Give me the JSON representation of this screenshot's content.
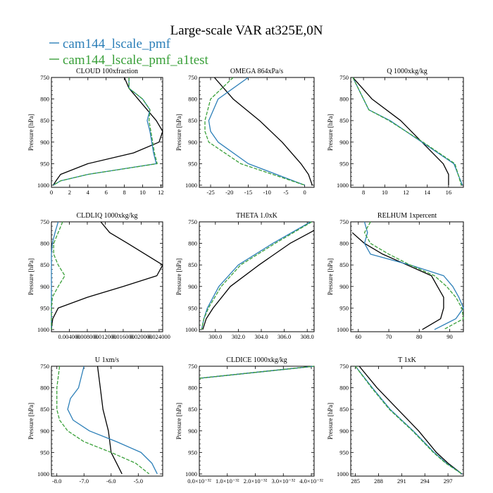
{
  "title": "Large-scale VAR at325E,0N",
  "legend": [
    {
      "label": "cam144_lscale_pmf",
      "color": "#2c7fb8"
    },
    {
      "label": "cam144_lscale_pmf_a1test",
      "color": "#3aa03a"
    }
  ],
  "colors": {
    "control": "#000000"
  },
  "chart_data": [
    {
      "type": "line",
      "title": "CLOUD 100xfraction",
      "ylabel": "Pressure [hPa]",
      "xlim": [
        0,
        12.2
      ],
      "ylim": [
        750,
        1005
      ],
      "xticks": [
        0,
        2,
        4,
        6,
        8,
        10,
        12
      ],
      "xtick_labels": [
        "0",
        "2",
        "4",
        "6",
        "8",
        "10",
        "12"
      ],
      "yticks": [
        750,
        800,
        850,
        900,
        950,
        1000
      ],
      "ytick_labels": [
        "750",
        "800",
        "850",
        "900",
        "950",
        "1000"
      ],
      "series": [
        {
          "color": "#000000",
          "y": [
            750,
            775,
            800,
            825,
            850,
            875,
            900,
            925,
            950,
            975,
            990,
            1000
          ],
          "x": [
            8.0,
            8.5,
            9.5,
            10.5,
            11.5,
            12.2,
            11.8,
            9.0,
            4.0,
            1.0,
            0.5,
            0.2
          ]
        },
        {
          "color": "#2c7fb8",
          "y": [
            750,
            775,
            800,
            825,
            850,
            875,
            900,
            925,
            950,
            975,
            990,
            1000
          ],
          "x": [
            8.5,
            8.5,
            10.0,
            10.8,
            10.5,
            10.8,
            11.0,
            11.2,
            11.5,
            4.0,
            1.0,
            0.2
          ]
        },
        {
          "color": "#3aa03a",
          "dash": "5,2",
          "y": [
            750,
            775,
            800,
            825,
            850,
            875,
            900,
            925,
            950,
            975,
            990,
            1000
          ],
          "x": [
            8.5,
            8.5,
            10.0,
            10.8,
            10.7,
            10.9,
            11.1,
            11.3,
            11.6,
            4.0,
            1.0,
            0.2
          ]
        }
      ]
    },
    {
      "type": "line",
      "title": "OMEGA 864xPa/s",
      "ylabel": "Pressure [hPa]",
      "xlim": [
        -28,
        2.5
      ],
      "ylim": [
        750,
        1005
      ],
      "xticks": [
        -25,
        -20,
        -15,
        -10,
        -5,
        0
      ],
      "xtick_labels": [
        "-25",
        "-20",
        "-15",
        "-10",
        "-5",
        "0"
      ],
      "yticks": [
        750,
        800,
        850,
        900,
        950,
        1000
      ],
      "ytick_labels": [
        "750",
        "800",
        "850",
        "900",
        "950",
        "1000"
      ],
      "series": [
        {
          "color": "#000000",
          "y": [
            750,
            800,
            850,
            900,
            950,
            975,
            1000
          ],
          "x": [
            -24.0,
            -19.0,
            -12.0,
            -6.0,
            -1.0,
            1.0,
            2.0
          ]
        },
        {
          "color": "#2c7fb8",
          "y": [
            750,
            800,
            850,
            875,
            900,
            950,
            1000
          ],
          "x": [
            -15.0,
            -23.0,
            -25.5,
            -25.0,
            -23.0,
            -15.0,
            0.0
          ]
        },
        {
          "color": "#3aa03a",
          "dash": "5,2",
          "y": [
            750,
            800,
            850,
            875,
            900,
            950,
            1000
          ],
          "x": [
            -19.0,
            -25.0,
            -26.5,
            -26.5,
            -25.5,
            -17.0,
            0.0
          ]
        }
      ]
    },
    {
      "type": "line",
      "title": "Q 1000xkg/kg",
      "ylabel": "Pressure [hPa]",
      "xlim": [
        6.8,
        17.4
      ],
      "ylim": [
        750,
        1005
      ],
      "xticks": [
        8,
        10,
        12,
        14,
        16
      ],
      "xtick_labels": [
        "8",
        "10",
        "12",
        "14",
        "16"
      ],
      "yticks": [
        750,
        800,
        850,
        900,
        950,
        1000
      ],
      "ytick_labels": [
        "750",
        "800",
        "850",
        "900",
        "950",
        "1000"
      ],
      "series": [
        {
          "color": "#000000",
          "y": [
            750,
            800,
            850,
            900,
            950,
            975,
            1000
          ],
          "x": [
            7.0,
            8.8,
            11.5,
            13.5,
            15.5,
            16.0,
            16.0
          ]
        },
        {
          "color": "#2c7fb8",
          "y": [
            750,
            800,
            825,
            850,
            900,
            950,
            1000
          ],
          "x": [
            7.0,
            8.0,
            8.5,
            10.5,
            13.5,
            16.5,
            17.3
          ]
        },
        {
          "color": "#3aa03a",
          "dash": "5,2",
          "y": [
            750,
            800,
            825,
            850,
            900,
            950,
            1000
          ],
          "x": [
            7.0,
            8.0,
            8.5,
            10.4,
            13.6,
            16.6,
            17.2
          ]
        }
      ]
    },
    {
      "type": "line",
      "title": "CLDLIQ 1000xkg/kg",
      "ylabel": "Pressure [hPa]",
      "xlim": [
        0,
        0.0248
      ],
      "ylim": [
        750,
        1005
      ],
      "xticks": [
        0.004,
        0.008,
        0.012,
        0.016,
        0.02,
        0.024
      ],
      "xtick_labels": [
        "0.004000",
        "0.008000",
        "0.012000",
        "0.016000",
        "0.020000",
        "0.024000"
      ],
      "yticks": [
        750,
        800,
        850,
        900,
        950,
        1000
      ],
      "ytick_labels": [
        "750",
        "800",
        "850",
        "900",
        "950",
        "1000"
      ],
      "series": [
        {
          "color": "#000000",
          "y": [
            750,
            775,
            800,
            850,
            875,
            900,
            925,
            950,
            975,
            990,
            1000
          ],
          "x": [
            0.011,
            0.013,
            0.017,
            0.0248,
            0.0235,
            0.016,
            0.008,
            0.0015,
            0.0003,
            0.0001,
            0.0
          ]
        },
        {
          "color": "#2c7fb8",
          "y": [
            750,
            775,
            800,
            825,
            850,
            875,
            900,
            950,
            1000
          ],
          "x": [
            0.0015,
            0.0008,
            0.0002,
            0.0,
            0.0,
            0.0,
            0.0,
            0.0,
            0.0
          ]
        },
        {
          "color": "#3aa03a",
          "dash": "5,2",
          "y": [
            750,
            775,
            800,
            825,
            850,
            875,
            900,
            925,
            950,
            1000
          ],
          "x": [
            0.0025,
            0.0015,
            0.0005,
            0.0005,
            0.0015,
            0.003,
            0.0015,
            0.0002,
            0.0,
            0.0
          ]
        }
      ]
    },
    {
      "type": "line",
      "title": "THETA 1.0xK",
      "ylabel": "Pressure [hPa]",
      "xlim": [
        298.6,
        308.6
      ],
      "ylim": [
        750,
        1005
      ],
      "xticks": [
        300,
        302,
        304,
        306,
        308
      ],
      "xtick_labels": [
        "300.0",
        "302.0",
        "304.0",
        "306.0",
        "308.0"
      ],
      "yticks": [
        750,
        800,
        850,
        900,
        950,
        1000
      ],
      "ytick_labels": [
        "750",
        "800",
        "850",
        "900",
        "950",
        "1000"
      ],
      "series": [
        {
          "color": "#000000",
          "y": [
            770,
            800,
            850,
            900,
            950,
            975,
            1000
          ],
          "x": [
            308.6,
            306.5,
            303.8,
            301.3,
            299.8,
            299.2,
            298.9
          ]
        },
        {
          "color": "#2c7fb8",
          "y": [
            750,
            800,
            850,
            900,
            950,
            975,
            1000
          ],
          "x": [
            308.3,
            305.0,
            302.0,
            300.3,
            299.3,
            299.0,
            298.8
          ]
        },
        {
          "color": "#3aa03a",
          "dash": "5,2",
          "y": [
            750,
            800,
            850,
            900,
            950,
            975,
            1000
          ],
          "x": [
            308.4,
            305.2,
            302.2,
            300.5,
            299.4,
            299.0,
            298.8
          ]
        }
      ]
    },
    {
      "type": "line",
      "title": "RELHUM 1xpercent",
      "ylabel": "Pressure [hPa]",
      "xlim": [
        57.5,
        94.5
      ],
      "ylim": [
        750,
        1005
      ],
      "xticks": [
        60,
        70,
        80,
        90
      ],
      "xtick_labels": [
        "60",
        "70",
        "80",
        "90"
      ],
      "yticks": [
        750,
        800,
        850,
        900,
        950,
        1000
      ],
      "ytick_labels": [
        "750",
        "800",
        "850",
        "900",
        "950",
        "1000"
      ],
      "series": [
        {
          "color": "#000000",
          "y": [
            775,
            800,
            825,
            850,
            875,
            900,
            925,
            950,
            975,
            1000
          ],
          "x": [
            58.0,
            62.0,
            68.0,
            76.0,
            84.0,
            86.0,
            88.0,
            88.0,
            87.0,
            81.0
          ]
        },
        {
          "color": "#2c7fb8",
          "y": [
            750,
            775,
            800,
            825,
            850,
            875,
            900,
            925,
            950,
            975,
            1000
          ],
          "x": [
            62.0,
            63.0,
            62.0,
            64.0,
            77.0,
            88.0,
            91.0,
            93.0,
            94.5,
            92.0,
            85.0
          ]
        },
        {
          "color": "#3aa03a",
          "dash": "5,2",
          "y": [
            750,
            775,
            800,
            825,
            850,
            875,
            900,
            925,
            950,
            975,
            1000
          ],
          "x": [
            64.0,
            62.0,
            64.0,
            70.0,
            77.0,
            85.0,
            89.0,
            92.0,
            94.0,
            94.5,
            88.0
          ]
        }
      ]
    },
    {
      "type": "line",
      "title": "U 1xm/s",
      "ylabel": "Pressure [hPa]",
      "xlim": [
        -8.2,
        -4.1
      ],
      "ylim": [
        750,
        1005
      ],
      "xticks": [
        -8,
        -7,
        -6,
        -5
      ],
      "xtick_labels": [
        "-8.0",
        "-7.0",
        "-6.0",
        "-5.0"
      ],
      "yticks": [
        750,
        800,
        850,
        900,
        950,
        1000
      ],
      "ytick_labels": [
        "750",
        "800",
        "850",
        "900",
        "950",
        "1000"
      ],
      "series": [
        {
          "color": "#000000",
          "y": [
            750,
            800,
            850,
            900,
            950,
            975,
            1000
          ],
          "x": [
            -6.5,
            -6.4,
            -6.3,
            -6.1,
            -6.0,
            -5.8,
            -5.6
          ]
        },
        {
          "color": "#2c7fb8",
          "y": [
            750,
            800,
            825,
            850,
            875,
            900,
            925,
            950,
            975,
            1000
          ],
          "x": [
            -7.0,
            -7.2,
            -7.5,
            -7.6,
            -7.4,
            -6.8,
            -5.8,
            -4.9,
            -4.5,
            -4.3
          ]
        },
        {
          "color": "#3aa03a",
          "dash": "5,2",
          "y": [
            750,
            800,
            850,
            875,
            900,
            925,
            950,
            975,
            1000
          ],
          "x": [
            -7.9,
            -8.0,
            -8.0,
            -7.9,
            -7.6,
            -7.0,
            -6.0,
            -5.1,
            -4.6
          ]
        }
      ]
    },
    {
      "type": "line",
      "title": "CLDICE 1000xkg/kg",
      "ylabel": "Pressure [hPa]",
      "xlim": [
        0,
        4.1e-32
      ],
      "ylim": [
        750,
        1005
      ],
      "xticks": [
        0,
        1e-32,
        2e-32,
        3e-32,
        4e-32
      ],
      "xtick_labels": [
        "0.0×10⁻³²",
        "1.0×10⁻³²",
        "2.0×10⁻³²",
        "3.0×10⁻³²",
        "4.0×10⁻³²"
      ],
      "yticks": [
        750,
        800,
        850,
        900,
        950,
        1000
      ],
      "ytick_labels": [
        "750",
        "800",
        "850",
        "900",
        "950",
        "1000"
      ],
      "series": [
        {
          "color": "#000000",
          "y": [
            778,
            750
          ],
          "x": [
            0.0,
            4.1e-32
          ]
        },
        {
          "color": "#2c7fb8",
          "y": [
            778,
            750
          ],
          "x": [
            0.0,
            4.1e-32
          ]
        },
        {
          "color": "#3aa03a",
          "dash": "5,2",
          "y": [
            778,
            750
          ],
          "x": [
            0.0,
            4.1e-32
          ]
        }
      ]
    },
    {
      "type": "line",
      "title": "T 1xK",
      "ylabel": "Pressure [hPa]",
      "xlim": [
        284.4,
        299.0
      ],
      "ylim": [
        750,
        1005
      ],
      "xticks": [
        285,
        288,
        291,
        294,
        297
      ],
      "xtick_labels": [
        "285",
        "288",
        "291",
        "294",
        "297"
      ],
      "yticks": [
        750,
        800,
        850,
        900,
        950,
        1000
      ],
      "ytick_labels": [
        "750",
        "800",
        "850",
        "900",
        "950",
        "1000"
      ],
      "series": [
        {
          "color": "#000000",
          "y": [
            750,
            800,
            850,
            900,
            950,
            975,
            1000
          ],
          "x": [
            285.5,
            287.8,
            290.5,
            293.2,
            295.5,
            297.0,
            298.8
          ]
        },
        {
          "color": "#2c7fb8",
          "y": [
            750,
            800,
            850,
            900,
            950,
            975,
            1000
          ],
          "x": [
            285.0,
            287.2,
            289.5,
            292.5,
            295.2,
            296.8,
            298.8
          ]
        },
        {
          "color": "#3aa03a",
          "dash": "5,2",
          "y": [
            750,
            800,
            850,
            900,
            950,
            975,
            1000
          ],
          "x": [
            285.0,
            287.1,
            289.4,
            292.4,
            295.1,
            296.7,
            298.8
          ]
        }
      ]
    }
  ]
}
